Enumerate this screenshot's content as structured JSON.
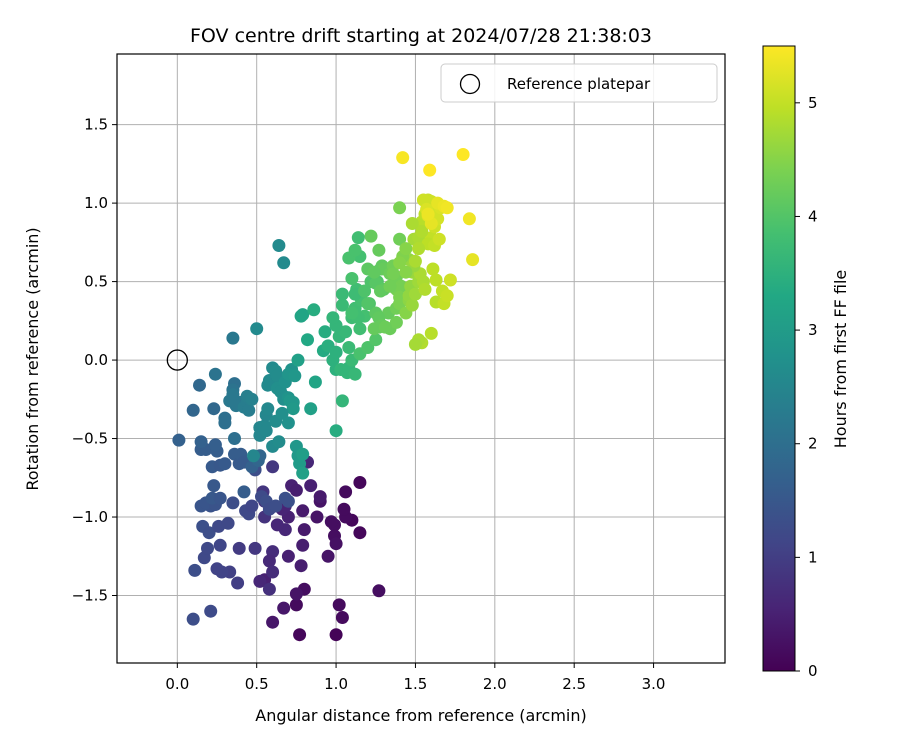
{
  "chart_data": {
    "type": "scatter",
    "title": "FOV centre drift starting at 2024/07/28 21:38:03",
    "xlabel": "Angular distance from reference (arcmin)",
    "ylabel": "Rotation from reference (arcmin)",
    "xlim": [
      -0.38,
      3.45
    ],
    "ylim": [
      -1.93,
      1.95
    ],
    "xticks": [
      0.0,
      0.5,
      1.0,
      1.5,
      2.0,
      2.5,
      3.0
    ],
    "xtick_labels": [
      "0.0",
      "0.5",
      "1.0",
      "1.5",
      "2.0",
      "2.5",
      "3.0"
    ],
    "yticks": [
      -1.5,
      -1.0,
      -0.5,
      0.0,
      0.5,
      1.0,
      1.5
    ],
    "ytick_labels": [
      "−1.5",
      "−1.0",
      "−0.5",
      "0.0",
      "0.5",
      "1.0",
      "1.5"
    ],
    "grid": true,
    "legend": {
      "placement": "top-right",
      "entries": [
        {
          "label": "Reference platepar",
          "marker": "open-circle"
        }
      ]
    },
    "reference_point": {
      "x": 0.0,
      "y": 0.0
    },
    "colorbar": {
      "label": "Hours from first FF file",
      "colormap": "viridis",
      "range": [
        0,
        5.5
      ],
      "ticks": [
        0,
        1,
        2,
        3,
        4,
        5
      ],
      "tick_labels": [
        "0",
        "1",
        "2",
        "3",
        "4",
        "5"
      ]
    },
    "points": [
      [
        1.0,
        -1.75,
        0.05
      ],
      [
        0.77,
        -1.75,
        0.1
      ],
      [
        0.75,
        -1.56,
        0.15
      ],
      [
        1.02,
        -1.56,
        0.15
      ],
      [
        1.04,
        -1.64,
        0.15
      ],
      [
        0.8,
        -1.46,
        0.2
      ],
      [
        1.27,
        -1.47,
        0.2
      ],
      [
        0.6,
        -1.67,
        0.35
      ],
      [
        0.67,
        -1.58,
        0.35
      ],
      [
        0.75,
        -1.49,
        0.3
      ],
      [
        0.55,
        -1.4,
        0.5
      ],
      [
        0.52,
        -1.41,
        0.6
      ],
      [
        1.15,
        -1.1,
        0.1
      ],
      [
        1.1,
        -1.02,
        0.1
      ],
      [
        1.06,
        -1.0,
        0.15
      ],
      [
        0.99,
        -1.05,
        0.2
      ],
      [
        0.99,
        -1.12,
        0.2
      ],
      [
        0.95,
        -1.25,
        0.3
      ],
      [
        1.0,
        -1.17,
        0.25
      ],
      [
        0.97,
        -1.03,
        0.2
      ],
      [
        1.05,
        -0.95,
        0.15
      ],
      [
        1.06,
        -0.84,
        0.15
      ],
      [
        1.15,
        -0.78,
        0.1
      ],
      [
        0.9,
        -0.9,
        0.3
      ],
      [
        0.88,
        -1.0,
        0.3
      ],
      [
        0.79,
        -0.96,
        0.4
      ],
      [
        0.8,
        -1.08,
        0.4
      ],
      [
        0.72,
        -0.8,
        0.5
      ],
      [
        0.75,
        -0.83,
        0.45
      ],
      [
        0.79,
        -1.18,
        0.45
      ],
      [
        0.78,
        -1.31,
        0.45
      ],
      [
        0.7,
        -1.25,
        0.5
      ],
      [
        0.7,
        -1.0,
        0.5
      ],
      [
        0.68,
        -0.93,
        0.6
      ],
      [
        0.66,
        -0.95,
        0.55
      ],
      [
        0.68,
        -1.08,
        0.6
      ],
      [
        0.63,
        -1.05,
        0.6
      ],
      [
        0.6,
        -1.22,
        0.7
      ],
      [
        0.58,
        -1.28,
        0.65
      ],
      [
        0.6,
        -1.35,
        0.7
      ],
      [
        0.58,
        -1.46,
        0.75
      ],
      [
        0.55,
        -1.0,
        0.8
      ],
      [
        0.54,
        -0.84,
        0.85
      ],
      [
        0.55,
        -0.9,
        0.8
      ],
      [
        0.6,
        -0.68,
        0.9
      ],
      [
        0.82,
        -0.65,
        0.6
      ],
      [
        0.84,
        -0.8,
        0.5
      ],
      [
        0.9,
        -0.87,
        0.4
      ],
      [
        0.49,
        -1.2,
        0.9
      ],
      [
        0.39,
        -1.2,
        0.95
      ],
      [
        0.38,
        -1.42,
        1.0
      ],
      [
        0.33,
        -1.35,
        1.05
      ],
      [
        0.28,
        -1.35,
        1.1
      ],
      [
        0.25,
        -1.33,
        1.1
      ],
      [
        0.17,
        -1.26,
        1.2
      ],
      [
        0.19,
        -1.2,
        1.2
      ],
      [
        0.21,
        -1.6,
        1.25
      ],
      [
        0.1,
        -1.65,
        1.3
      ],
      [
        0.11,
        -1.34,
        1.3
      ],
      [
        0.16,
        -1.06,
        1.35
      ],
      [
        0.2,
        -1.1,
        1.3
      ],
      [
        0.26,
        -1.06,
        1.2
      ],
      [
        0.32,
        -1.04,
        1.2
      ],
      [
        0.27,
        -1.18,
        1.15
      ],
      [
        0.21,
        -0.93,
        1.4
      ],
      [
        0.15,
        -0.93,
        1.45
      ],
      [
        0.18,
        -0.91,
        1.45
      ],
      [
        0.24,
        -0.92,
        1.4
      ],
      [
        0.22,
        -0.88,
        1.5
      ],
      [
        0.27,
        -0.88,
        1.45
      ],
      [
        0.23,
        -0.8,
        1.5
      ],
      [
        0.22,
        -0.68,
        1.55
      ],
      [
        0.27,
        -0.67,
        1.5
      ],
      [
        0.3,
        -0.66,
        1.55
      ],
      [
        0.18,
        -0.57,
        1.6
      ],
      [
        0.15,
        -0.57,
        1.6
      ],
      [
        0.25,
        -0.58,
        1.6
      ],
      [
        0.24,
        -0.54,
        1.65
      ],
      [
        0.36,
        -0.6,
        1.6
      ],
      [
        0.39,
        -0.66,
        1.55
      ],
      [
        0.4,
        -0.6,
        1.6
      ],
      [
        0.42,
        -0.65,
        1.55
      ],
      [
        0.35,
        -0.91,
        1.3
      ],
      [
        0.43,
        -0.96,
        1.2
      ],
      [
        0.45,
        -0.98,
        1.2
      ],
      [
        0.47,
        -0.93,
        1.15
      ],
      [
        0.49,
        -0.7,
        1.3
      ],
      [
        0.53,
        -0.87,
        1.25
      ],
      [
        0.56,
        -0.9,
        1.3
      ],
      [
        0.58,
        -0.95,
        1.25
      ],
      [
        0.62,
        -0.93,
        1.3
      ],
      [
        0.68,
        -0.88,
        1.35
      ],
      [
        0.7,
        -0.9,
        1.35
      ],
      [
        0.42,
        -0.84,
        1.6
      ],
      [
        0.47,
        -0.68,
        1.7
      ],
      [
        0.52,
        -0.61,
        1.8
      ],
      [
        0.51,
        -0.64,
        1.8
      ],
      [
        0.15,
        -0.52,
        1.7
      ],
      [
        0.01,
        -0.51,
        1.7
      ],
      [
        0.1,
        -0.32,
        1.8
      ],
      [
        0.14,
        -0.16,
        1.85
      ],
      [
        0.23,
        -0.31,
        1.85
      ],
      [
        0.3,
        -0.37,
        2.0
      ],
      [
        0.3,
        -0.4,
        2.0
      ],
      [
        0.36,
        -0.5,
        2.0
      ],
      [
        0.36,
        -0.15,
        2.0
      ],
      [
        0.24,
        -0.09,
        2.1
      ],
      [
        0.35,
        -0.19,
        2.1
      ],
      [
        0.4,
        -0.27,
        2.2
      ],
      [
        0.37,
        -0.29,
        2.2
      ],
      [
        0.35,
        -0.22,
        2.2
      ],
      [
        0.33,
        -0.26,
        2.2
      ],
      [
        0.35,
        0.14,
        2.2
      ],
      [
        0.42,
        -0.3,
        2.3
      ],
      [
        0.44,
        -0.27,
        2.3
      ],
      [
        0.44,
        -0.23,
        2.35
      ],
      [
        0.45,
        -0.32,
        2.3
      ],
      [
        0.47,
        -0.25,
        2.4
      ],
      [
        0.48,
        -0.61,
        2.5
      ],
      [
        0.52,
        -0.43,
        2.5
      ],
      [
        0.52,
        -0.43,
        2.5
      ],
      [
        0.52,
        -0.48,
        2.5
      ],
      [
        0.55,
        -0.42,
        2.55
      ],
      [
        0.56,
        -0.45,
        2.55
      ],
      [
        0.56,
        -0.35,
        2.5
      ],
      [
        0.57,
        -0.31,
        2.55
      ],
      [
        0.57,
        -0.16,
        2.6
      ],
      [
        0.58,
        -0.13,
        2.6
      ],
      [
        0.6,
        -0.05,
        2.6
      ],
      [
        0.62,
        -0.07,
        2.65
      ],
      [
        0.63,
        -0.1,
        2.65
      ],
      [
        0.63,
        -0.18,
        2.7
      ],
      [
        0.65,
        -0.2,
        2.7
      ],
      [
        0.67,
        -0.23,
        2.7
      ],
      [
        0.67,
        -0.25,
        2.7
      ],
      [
        0.68,
        -0.14,
        2.75
      ],
      [
        0.7,
        -0.24,
        2.8
      ],
      [
        0.72,
        -0.06,
        2.8
      ],
      [
        0.7,
        -0.09,
        2.85
      ],
      [
        0.74,
        -0.1,
        2.9
      ],
      [
        0.71,
        -0.26,
        2.9
      ],
      [
        0.73,
        -0.27,
        2.9
      ],
      [
        0.73,
        -0.31,
        2.95
      ],
      [
        0.6,
        -0.55,
        2.6
      ],
      [
        0.64,
        -0.52,
        2.65
      ],
      [
        0.62,
        -0.39,
        2.65
      ],
      [
        0.66,
        -0.34,
        2.7
      ],
      [
        0.7,
        -0.4,
        2.75
      ],
      [
        0.75,
        -0.55,
        2.9
      ],
      [
        0.76,
        -0.61,
        2.95
      ],
      [
        0.77,
        -0.66,
        3.0
      ],
      [
        0.79,
        -0.6,
        3.05
      ],
      [
        0.79,
        -0.72,
        3.1
      ],
      [
        0.5,
        0.2,
        2.6
      ],
      [
        0.64,
        0.73,
        2.6
      ],
      [
        0.67,
        0.62,
        2.6
      ],
      [
        0.76,
        0.0,
        3.1
      ],
      [
        0.78,
        0.28,
        3.2
      ],
      [
        0.79,
        0.29,
        3.2
      ],
      [
        0.82,
        0.13,
        3.3
      ],
      [
        0.86,
        0.32,
        3.4
      ],
      [
        0.84,
        -0.31,
        3.1
      ],
      [
        0.87,
        -0.14,
        3.2
      ],
      [
        0.92,
        0.06,
        3.35
      ],
      [
        0.93,
        0.18,
        3.4
      ],
      [
        0.95,
        0.09,
        3.45
      ],
      [
        0.98,
        0.0,
        3.5
      ],
      [
        1.0,
        0.05,
        3.5
      ],
      [
        1.0,
        -0.06,
        3.5
      ],
      [
        1.03,
        -0.06,
        3.6
      ],
      [
        1.07,
        -0.08,
        3.6
      ],
      [
        1.08,
        -0.05,
        3.6
      ],
      [
        1.12,
        -0.09,
        3.65
      ],
      [
        1.0,
        -0.45,
        3.4
      ],
      [
        1.04,
        -0.26,
        3.6
      ],
      [
        1.02,
        0.15,
        3.6
      ],
      [
        1.06,
        0.18,
        3.65
      ],
      [
        1.08,
        0.08,
        3.7
      ],
      [
        1.1,
        0.0,
        3.7
      ],
      [
        1.04,
        0.35,
        3.7
      ],
      [
        1.1,
        0.27,
        3.75
      ],
      [
        1.12,
        0.33,
        3.8
      ],
      [
        1.13,
        0.45,
        3.8
      ],
      [
        1.16,
        0.38,
        3.85
      ],
      [
        1.18,
        0.28,
        3.85
      ],
      [
        1.0,
        0.22,
        3.6
      ],
      [
        0.98,
        0.27,
        3.6
      ],
      [
        1.04,
        0.42,
        3.7
      ],
      [
        1.12,
        0.42,
        3.75
      ],
      [
        1.14,
        0.27,
        3.8
      ],
      [
        1.15,
        0.2,
        3.8
      ],
      [
        1.15,
        0.04,
        3.9
      ],
      [
        1.2,
        0.08,
        3.95
      ],
      [
        1.25,
        0.13,
        4.0
      ],
      [
        1.21,
        0.36,
        3.95
      ],
      [
        1.22,
        0.5,
        3.95
      ],
      [
        1.26,
        0.5,
        4.0
      ],
      [
        1.2,
        0.58,
        4.1
      ],
      [
        1.25,
        0.49,
        4.05
      ],
      [
        1.28,
        0.58,
        4.1
      ],
      [
        1.29,
        0.6,
        4.15
      ],
      [
        1.3,
        0.45,
        4.1
      ],
      [
        1.33,
        0.3,
        4.2
      ],
      [
        1.34,
        0.2,
        4.25
      ],
      [
        1.38,
        0.33,
        4.3
      ],
      [
        1.38,
        0.24,
        4.3
      ],
      [
        1.4,
        0.36,
        4.4
      ],
      [
        1.38,
        0.53,
        4.3
      ],
      [
        1.41,
        0.47,
        4.35
      ],
      [
        1.38,
        0.45,
        4.35
      ],
      [
        1.4,
        0.4,
        4.4
      ],
      [
        1.44,
        0.3,
        4.5
      ],
      [
        1.46,
        0.38,
        4.55
      ],
      [
        1.46,
        0.41,
        4.6
      ],
      [
        1.47,
        0.47,
        4.6
      ],
      [
        1.48,
        0.35,
        4.65
      ],
      [
        1.48,
        0.56,
        4.65
      ],
      [
        1.52,
        0.5,
        4.7
      ],
      [
        1.5,
        0.42,
        4.7
      ],
      [
        1.53,
        0.55,
        4.8
      ],
      [
        1.55,
        0.5,
        4.8
      ],
      [
        1.56,
        0.45,
        4.85
      ],
      [
        1.22,
        0.79,
        4.2
      ],
      [
        1.14,
        0.78,
        3.8
      ],
      [
        1.15,
        0.66,
        3.85
      ],
      [
        1.4,
        0.77,
        4.3
      ],
      [
        1.4,
        0.97,
        4.4
      ],
      [
        1.46,
        0.64,
        4.6
      ],
      [
        1.49,
        0.6,
        4.65
      ],
      [
        1.49,
        0.77,
        4.75
      ],
      [
        1.52,
        0.78,
        4.8
      ],
      [
        1.54,
        0.88,
        4.9
      ],
      [
        1.56,
        0.93,
        4.95
      ],
      [
        1.57,
        1.0,
        5.0
      ],
      [
        1.58,
        1.02,
        5.05
      ],
      [
        1.6,
        1.01,
        5.1
      ],
      [
        1.6,
        0.78,
        5.0
      ],
      [
        1.62,
        0.85,
        5.1
      ],
      [
        1.62,
        0.95,
        5.15
      ],
      [
        1.64,
        0.9,
        5.15
      ],
      [
        1.66,
        0.97,
        5.2
      ],
      [
        1.61,
        0.58,
        4.95
      ],
      [
        1.63,
        0.51,
        4.95
      ],
      [
        1.67,
        0.44,
        5.0
      ],
      [
        1.63,
        0.37,
        4.9
      ],
      [
        1.68,
        0.36,
        5.0
      ],
      [
        1.7,
        0.41,
        5.05
      ],
      [
        1.72,
        0.51,
        5.1
      ],
      [
        1.6,
        0.17,
        4.9
      ],
      [
        1.54,
        0.11,
        4.85
      ],
      [
        1.52,
        0.13,
        4.8
      ],
      [
        1.5,
        0.1,
        4.75
      ],
      [
        1.54,
        0.82,
        4.85
      ],
      [
        1.58,
        0.74,
        4.95
      ],
      [
        1.62,
        0.73,
        5.0
      ],
      [
        1.65,
        0.77,
        5.1
      ],
      [
        1.55,
        1.02,
        5.1
      ],
      [
        1.57,
        0.96,
        5.2
      ],
      [
        1.58,
        0.92,
        5.25
      ],
      [
        1.6,
        0.87,
        5.3
      ],
      [
        1.58,
        0.93,
        5.35
      ],
      [
        1.64,
        1.0,
        5.3
      ],
      [
        1.68,
        0.98,
        5.35
      ],
      [
        1.7,
        0.97,
        5.4
      ],
      [
        1.84,
        0.9,
        5.4
      ],
      [
        1.86,
        0.64,
        5.3
      ],
      [
        1.42,
        1.29,
        5.45
      ],
      [
        1.59,
        1.21,
        5.5
      ],
      [
        1.8,
        1.31,
        5.5
      ],
      [
        1.28,
        0.44,
        4.15
      ],
      [
        1.25,
        0.3,
        4.1
      ],
      [
        1.27,
        0.27,
        4.15
      ],
      [
        1.29,
        0.22,
        4.2
      ],
      [
        1.27,
        0.21,
        4.2
      ],
      [
        1.24,
        0.2,
        4.2
      ],
      [
        1.31,
        0.21,
        4.25
      ],
      [
        1.3,
        0.58,
        4.2
      ],
      [
        1.34,
        0.55,
        4.25
      ],
      [
        1.36,
        0.6,
        4.3
      ],
      [
        1.42,
        0.66,
        4.45
      ],
      [
        1.44,
        0.71,
        4.5
      ],
      [
        1.44,
        0.56,
        4.5
      ],
      [
        1.34,
        0.47,
        4.3
      ],
      [
        1.36,
        0.55,
        4.35
      ],
      [
        1.4,
        0.62,
        4.5
      ],
      [
        1.48,
        0.87,
        4.8
      ],
      [
        1.52,
        0.71,
        4.85
      ],
      [
        1.5,
        0.63,
        4.8
      ],
      [
        1.27,
        0.7,
        4.2
      ],
      [
        1.24,
        0.56,
        4.15
      ],
      [
        1.2,
        0.36,
        4.0
      ],
      [
        1.18,
        0.44,
        3.95
      ],
      [
        1.1,
        0.52,
        3.9
      ],
      [
        1.08,
        0.65,
        3.9
      ],
      [
        1.12,
        0.7,
        3.9
      ],
      [
        1.1,
        0.3,
        3.85
      ]
    ]
  }
}
